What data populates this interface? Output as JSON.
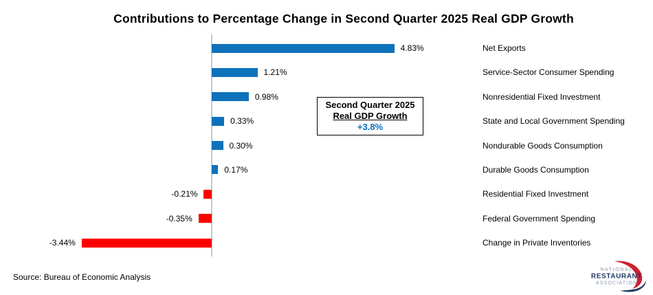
{
  "title": "Contributions to Percentage Change in Second Quarter 2025 Real GDP Growth",
  "chart_data": {
    "type": "bar",
    "orientation": "horizontal",
    "title": "Contributions to Percentage Change in Second Quarter 2025 Real GDP Growth",
    "categories": [
      "Net Exports",
      "Service-Sector Consumer Spending",
      "Nonresidential Fixed Investment",
      "State and Local Government Spending",
      "Nondurable Goods Consumption",
      "Durable Goods Consumption",
      "Residential Fixed Investment",
      "Federal Government Spending",
      "Change in Private Inventories"
    ],
    "values": [
      4.83,
      1.21,
      0.98,
      0.33,
      0.3,
      0.17,
      -0.21,
      -0.35,
      -3.44
    ],
    "value_labels": [
      "4.83%",
      "1.21%",
      "0.98%",
      "0.33%",
      "0.30%",
      "0.17%",
      "-0.21%",
      "-0.35%",
      "-3.44%"
    ],
    "xlim": [
      -3.6,
      4.9
    ],
    "grid": false,
    "legend": "none",
    "bar_color_positive": "#0e71bb",
    "bar_color_negative": "#ff0000",
    "axis_line_color": "#c8c8c8"
  },
  "annotation_box": {
    "line1": "Second Quarter 2025",
    "line2": "Real GDP Growth",
    "value": "+3.8%",
    "value_color": "#0070c0"
  },
  "source": "Source: Bureau of Economic Analysis",
  "logo": {
    "line1": "NATIONAL",
    "line2": "RESTAURANT",
    "line3": "ASSOCIATION",
    "text_color_light": "#8a96ae",
    "text_color_dark": "#203a64",
    "swoosh_red": "#ce2030",
    "swoosh_blue": "#1f3864"
  }
}
